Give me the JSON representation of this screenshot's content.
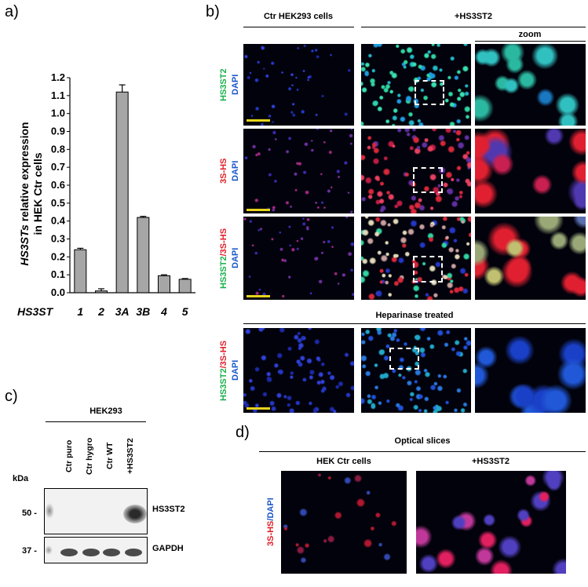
{
  "panels": {
    "a": "a)",
    "b": "b)",
    "c": "c)",
    "d": "d)"
  },
  "chart_data": {
    "type": "bar",
    "categories": [
      "1",
      "2",
      "3A",
      "3B",
      "4",
      "5"
    ],
    "values": [
      0.24,
      0.01,
      1.12,
      0.42,
      0.095,
      0.075
    ],
    "errors": [
      0.008,
      0.012,
      0.04,
      0.006,
      0.005,
      0.004
    ],
    "ylabel_italic": "HS3STs",
    "ylabel_rest": " relative expression",
    "ylabel_line2": "in HEK Ctr cells",
    "xlabel": "HS3ST",
    "ylim": [
      0,
      1.2
    ],
    "yticks": [
      "0.0",
      "0.1",
      "0.2",
      "0.3",
      "0.4",
      "0.5",
      "0.6",
      "0.7",
      "0.8",
      "0.9",
      "1.0",
      "1.1",
      "1.2"
    ],
    "bar_color": "#a6a6a6"
  },
  "panel_b": {
    "col_header_ctr": "Ctr HEK293 cells",
    "col_header_hs3st2": "+HS3ST2",
    "zoom_label": "zoom",
    "heparinase_label": "Heparinase treated",
    "row1_label_a": "HS3ST2",
    "row1_label_b": "DAPI",
    "row2_label_a": "3S-HS",
    "row2_label_b": "DAPI",
    "row3_label_a": "HS3ST2",
    "row3_label_slash": "/",
    "row3_label_b": "3S-HS",
    "row3_label_c": "DAPI",
    "row4_label_a": "HS3ST2",
    "row4_label_slash": "/",
    "row4_label_b": "3S-HS",
    "row4_label_c": "DAPI"
  },
  "panel_c": {
    "group_label": "HEK293",
    "lanes": [
      "Ctr puro",
      "Ctr hygro",
      "Ctr WT",
      "+HS3ST2"
    ],
    "kda_label": "kDa",
    "marker_50": "50 -",
    "marker_37": "37 -",
    "blot1_label": "HS3ST2",
    "blot2_label": "GAPDH"
  },
  "panel_d": {
    "title": "Optical slices",
    "col1": "HEK Ctr cells",
    "col2": "+HS3ST2",
    "side_label_a": "3S-HS",
    "side_label_slash": "/",
    "side_label_b": "DAPI"
  },
  "colors": {
    "green": "#18b04a",
    "blue": "#1a57c8",
    "red": "#e0202a",
    "scalebar": "#e6d41a"
  }
}
